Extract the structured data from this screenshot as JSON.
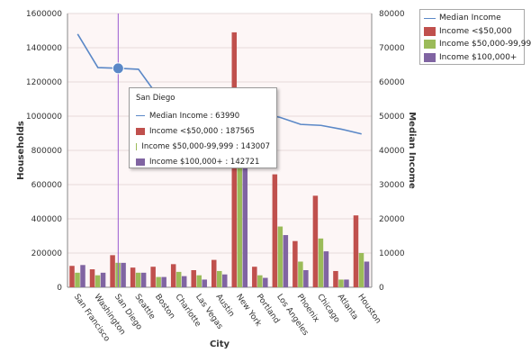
{
  "chart_data": {
    "type": "bar",
    "xlabel": "City",
    "ylabel": "Households",
    "y2label": "Median Income",
    "ylim": [
      0,
      1600000
    ],
    "y_ticks": [
      "0",
      "200000",
      "400000",
      "600000",
      "800000",
      "1000000",
      "1200000",
      "1400000",
      "1600000"
    ],
    "y2lim": [
      0,
      80000
    ],
    "y2_ticks": [
      "0",
      "10000",
      "20000",
      "30000",
      "40000",
      "50000",
      "60000",
      "70000",
      "80000"
    ],
    "categories": [
      "San Francisco",
      "Washington",
      "San Diego",
      "Seattle",
      "Boston",
      "Charlotte",
      "Las Vegas",
      "Austin",
      "New York",
      "Portland",
      "Los Angeles",
      "Phoenix",
      "Chicago",
      "Atlanta",
      "Houston"
    ],
    "series": [
      {
        "name": "Income <$50,000",
        "kind": "bar",
        "color": "#c0504d",
        "values": [
          125000,
          105000,
          187565,
          115000,
          120000,
          135000,
          100000,
          160000,
          1490000,
          120000,
          660000,
          270000,
          535000,
          95000,
          420000
        ]
      },
      {
        "name": "Income $50,000-99,999",
        "kind": "bar",
        "color": "#9bbb59",
        "values": [
          85000,
          70000,
          143007,
          85000,
          60000,
          90000,
          70000,
          95000,
          760000,
          70000,
          355000,
          150000,
          285000,
          45000,
          200000
        ]
      },
      {
        "name": "Income $100,000+",
        "kind": "bar",
        "color": "#8064a2",
        "values": [
          130000,
          85000,
          142721,
          85000,
          60000,
          65000,
          45000,
          75000,
          780000,
          55000,
          305000,
          100000,
          210000,
          45000,
          150000
        ]
      },
      {
        "name": "Median Income",
        "kind": "line",
        "axis": "y2",
        "color": "#5b88c7",
        "values": [
          74000,
          64200,
          63990,
          63700,
          55500,
          54500,
          53800,
          52600,
          52100,
          51000,
          49600,
          47600,
          47300,
          46200,
          44800
        ]
      }
    ],
    "legend_position": "top-right",
    "highlight_index": 2,
    "tooltip": {
      "title": "San Diego",
      "rows": [
        {
          "label": "Median Income : 63990",
          "kind": "line",
          "color": "#5b88c7"
        },
        {
          "label": "Income <$50,000 : 187565",
          "kind": "bar",
          "color": "#c0504d"
        },
        {
          "label": "Income $50,000-99,999 : 143007",
          "kind": "bar",
          "color": "#9bbb59"
        },
        {
          "label": "Income $100,000+ : 142721",
          "kind": "bar",
          "color": "#8064a2"
        }
      ]
    },
    "colors": {
      "plot_background": "#fdf6f6",
      "gridline": "#e6dada",
      "crosshair": "#9b59d0",
      "marker": "#5b88c7"
    }
  }
}
